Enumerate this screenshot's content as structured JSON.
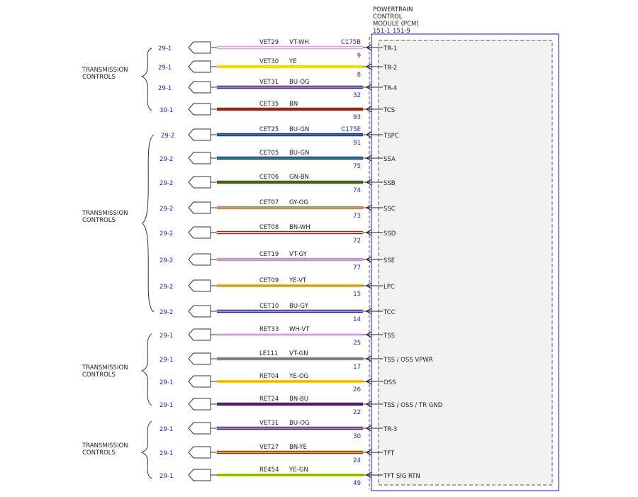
{
  "module": {
    "title_lines": [
      "POWERTRAIN",
      "CONTROL",
      "MODULE (PCM)"
    ],
    "refs": [
      "151-1",
      "151-9"
    ],
    "connectors": [
      "C175B",
      "C175E"
    ]
  },
  "groups": [
    {
      "label_lines": [
        "TRANSMISSION",
        "CONTROLS"
      ]
    },
    {
      "label_lines": [
        "TRANSMISSION",
        "CONTROLS"
      ]
    },
    {
      "label_lines": [
        "TRANSMISSION",
        "CONTROLS"
      ]
    },
    {
      "label_lines": [
        "TRANSMISSION",
        "CONTROLS"
      ]
    }
  ],
  "colors": {
    "VT-WH": {
      "base": "#d9a2dd",
      "stripe": "#ffffff"
    },
    "YE": {
      "base": "#f0e000",
      "stripe": "#f0e000"
    },
    "BU-OG": {
      "base": "#2323c8",
      "stripe": "#f39c28"
    },
    "BN": {
      "base": "#8c2a1c",
      "stripe": "#8c2a1c"
    },
    "BU-GN": {
      "base": "#2323c8",
      "stripe": "#2aa12a"
    },
    "GN-BN": {
      "base": "#1e7a1e",
      "stripe": "#7a4020"
    },
    "GY-OG": {
      "base": "#9c8a70",
      "stripe": "#f39c28"
    },
    "BN-WH": {
      "base": "#8c2a1c",
      "stripe": "#ffffff"
    },
    "VT-GY": {
      "base": "#c58ad0",
      "stripe": "#bdbdbd"
    },
    "YE-VT": {
      "base": "#f0d200",
      "stripe": "#b070c8"
    },
    "BU-GY": {
      "base": "#2323c8",
      "stripe": "#bdbdbd"
    },
    "WH-VT": {
      "base": "#eed6f0",
      "stripe": "#c98ad2"
    },
    "VT-GN": {
      "base": "#b07ac0",
      "stripe": "#2aa12a"
    },
    "YE-OG": {
      "base": "#f0d800",
      "stripe": "#f39c28"
    },
    "BN-BU": {
      "base": "#6a1e3e",
      "stripe": "#2323c8"
    },
    "BN-YE": {
      "base": "#8c2a1c",
      "stripe": "#f0d800"
    },
    "YE-GN": {
      "base": "#e6e600",
      "stripe": "#2aa12a"
    }
  },
  "circuits": [
    {
      "ref": "29-1",
      "circuit": "VET29",
      "color": "VT-WH",
      "pin": "9",
      "signal": "TR-1"
    },
    {
      "ref": "29-1",
      "circuit": "VET30",
      "color": "YE",
      "pin": "8",
      "signal": "TR-2"
    },
    {
      "ref": "29-1",
      "circuit": "VET31",
      "color": "BU-OG",
      "pin": "32",
      "signal": "TR-4"
    },
    {
      "ref": "30-1",
      "circuit": "CET35",
      "color": "BN",
      "pin": "93",
      "signal": "TCS"
    },
    {
      "ref": "29-2",
      "circuit": "CET25",
      "color": "BU-GN",
      "pin": "91",
      "signal": "TSPC"
    },
    {
      "ref": "29-2",
      "circuit": "CET05",
      "color": "BU-GN",
      "pin": "75",
      "signal": "SSA"
    },
    {
      "ref": "29-2",
      "circuit": "CET06",
      "color": "GN-BN",
      "pin": "74",
      "signal": "SSB"
    },
    {
      "ref": "29-2",
      "circuit": "CET07",
      "color": "GY-OG",
      "pin": "73",
      "signal": "SSC"
    },
    {
      "ref": "29-2",
      "circuit": "CET08",
      "color": "BN-WH",
      "pin": "72",
      "signal": "SSD"
    },
    {
      "ref": "29-2",
      "circuit": "CET19",
      "color": "VT-GY",
      "pin": "77",
      "signal": "SSE"
    },
    {
      "ref": "29-2",
      "circuit": "CET09",
      "color": "YE-VT",
      "pin": "15",
      "signal": "LPC"
    },
    {
      "ref": "29-2",
      "circuit": "CET10",
      "color": "BU-GY",
      "pin": "14",
      "signal": "TCC"
    },
    {
      "ref": "29-1",
      "circuit": "RET33",
      "color": "WH-VT",
      "pin": "25",
      "signal": "TSS"
    },
    {
      "ref": "29-1",
      "circuit": "LE111",
      "color": "VT-GN",
      "pin": "17",
      "signal": "TSS / OSS VPWR"
    },
    {
      "ref": "29-1",
      "circuit": "RET04",
      "color": "YE-OG",
      "pin": "26",
      "signal": "OSS"
    },
    {
      "ref": "29-1",
      "circuit": "RET24",
      "color": "BN-BU",
      "pin": "22",
      "signal": "TSS / OSS / TR GND"
    },
    {
      "ref": "29-1",
      "circuit": "VET31",
      "color": "BU-OG",
      "pin": "30",
      "signal": "TR-3"
    },
    {
      "ref": "29-1",
      "circuit": "VET27",
      "color": "BN-YE",
      "pin": "24",
      "signal": "TFT"
    },
    {
      "ref": "29-1",
      "circuit": "RE454",
      "color": "YE-GN",
      "pin": "49",
      "signal": "TFT SIG RTN"
    }
  ]
}
